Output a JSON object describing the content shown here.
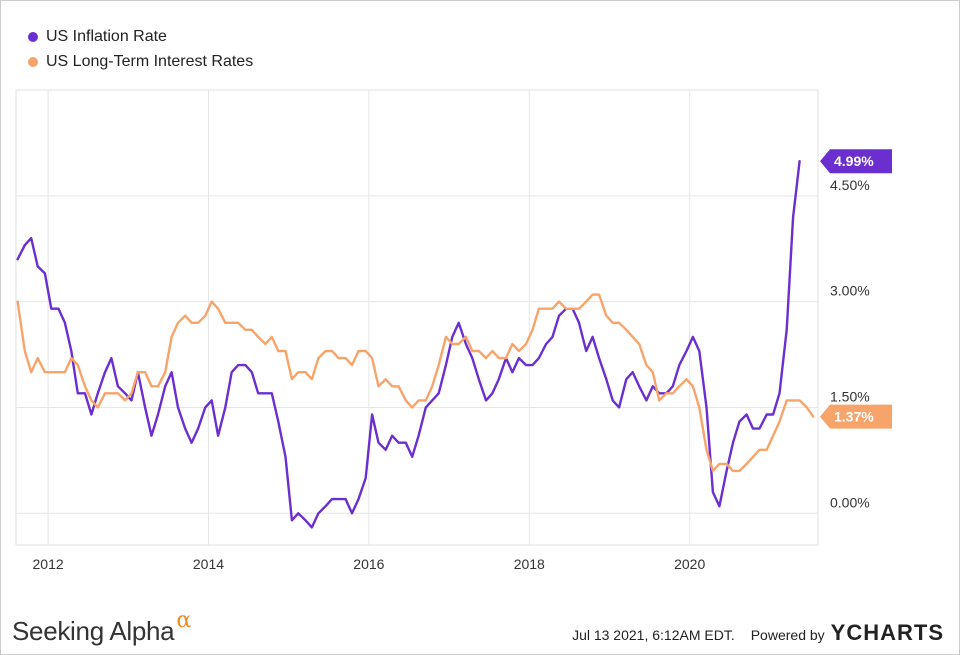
{
  "chart_data": {
    "type": "line",
    "x_ticks": [
      "2012",
      "2014",
      "2016",
      "2018",
      "2020"
    ],
    "x_range": [
      2011.6,
      2021.6
    ],
    "y_ticks": [
      "0.00%",
      "1.50%",
      "3.00%",
      "4.50%"
    ],
    "y_range": [
      -0.45,
      6.0
    ],
    "grid": true,
    "legend_position": "top-left",
    "series": [
      {
        "name": "US Inflation Rate",
        "color": "#6b2fcf",
        "end_label": "4.99%",
        "points": [
          [
            2011.62,
            3.6
          ],
          [
            2011.71,
            3.8
          ],
          [
            2011.79,
            3.9
          ],
          [
            2011.87,
            3.5
          ],
          [
            2011.96,
            3.4
          ],
          [
            2012.04,
            2.9
          ],
          [
            2012.13,
            2.9
          ],
          [
            2012.21,
            2.7
          ],
          [
            2012.29,
            2.3
          ],
          [
            2012.37,
            1.7
          ],
          [
            2012.46,
            1.7
          ],
          [
            2012.54,
            1.4
          ],
          [
            2012.62,
            1.7
          ],
          [
            2012.71,
            2.0
          ],
          [
            2012.79,
            2.2
          ],
          [
            2012.87,
            1.8
          ],
          [
            2012.96,
            1.7
          ],
          [
            2013.04,
            1.6
          ],
          [
            2013.12,
            2.0
          ],
          [
            2013.21,
            1.5
          ],
          [
            2013.29,
            1.1
          ],
          [
            2013.37,
            1.4
          ],
          [
            2013.46,
            1.8
          ],
          [
            2013.54,
            2.0
          ],
          [
            2013.62,
            1.5
          ],
          [
            2013.71,
            1.2
          ],
          [
            2013.79,
            1.0
          ],
          [
            2013.87,
            1.2
          ],
          [
            2013.96,
            1.5
          ],
          [
            2014.04,
            1.6
          ],
          [
            2014.12,
            1.1
          ],
          [
            2014.21,
            1.5
          ],
          [
            2014.29,
            2.0
          ],
          [
            2014.37,
            2.1
          ],
          [
            2014.46,
            2.1
          ],
          [
            2014.54,
            2.0
          ],
          [
            2014.62,
            1.7
          ],
          [
            2014.71,
            1.7
          ],
          [
            2014.79,
            1.7
          ],
          [
            2014.87,
            1.3
          ],
          [
            2014.96,
            0.8
          ],
          [
            2015.04,
            -0.1
          ],
          [
            2015.12,
            0.0
          ],
          [
            2015.21,
            -0.1
          ],
          [
            2015.29,
            -0.2
          ],
          [
            2015.37,
            0.0
          ],
          [
            2015.46,
            0.1
          ],
          [
            2015.54,
            0.2
          ],
          [
            2015.62,
            0.2
          ],
          [
            2015.71,
            0.2
          ],
          [
            2015.79,
            0.0
          ],
          [
            2015.87,
            0.2
          ],
          [
            2015.96,
            0.5
          ],
          [
            2016.04,
            1.4
          ],
          [
            2016.12,
            1.0
          ],
          [
            2016.21,
            0.9
          ],
          [
            2016.29,
            1.1
          ],
          [
            2016.37,
            1.0
          ],
          [
            2016.46,
            1.0
          ],
          [
            2016.54,
            0.8
          ],
          [
            2016.62,
            1.1
          ],
          [
            2016.71,
            1.5
          ],
          [
            2016.79,
            1.6
          ],
          [
            2016.87,
            1.7
          ],
          [
            2016.96,
            2.1
          ],
          [
            2017.04,
            2.5
          ],
          [
            2017.12,
            2.7
          ],
          [
            2017.21,
            2.4
          ],
          [
            2017.29,
            2.2
          ],
          [
            2017.37,
            1.9
          ],
          [
            2017.46,
            1.6
          ],
          [
            2017.54,
            1.7
          ],
          [
            2017.62,
            1.9
          ],
          [
            2017.71,
            2.2
          ],
          [
            2017.79,
            2.0
          ],
          [
            2017.87,
            2.2
          ],
          [
            2017.96,
            2.1
          ],
          [
            2018.04,
            2.1
          ],
          [
            2018.12,
            2.2
          ],
          [
            2018.21,
            2.4
          ],
          [
            2018.29,
            2.5
          ],
          [
            2018.37,
            2.8
          ],
          [
            2018.46,
            2.9
          ],
          [
            2018.54,
            2.9
          ],
          [
            2018.62,
            2.7
          ],
          [
            2018.71,
            2.3
          ],
          [
            2018.79,
            2.5
          ],
          [
            2018.87,
            2.2
          ],
          [
            2018.96,
            1.9
          ],
          [
            2019.04,
            1.6
          ],
          [
            2019.12,
            1.5
          ],
          [
            2019.21,
            1.9
          ],
          [
            2019.29,
            2.0
          ],
          [
            2019.37,
            1.8
          ],
          [
            2019.46,
            1.6
          ],
          [
            2019.54,
            1.8
          ],
          [
            2019.62,
            1.7
          ],
          [
            2019.71,
            1.7
          ],
          [
            2019.79,
            1.8
          ],
          [
            2019.87,
            2.1
          ],
          [
            2019.96,
            2.3
          ],
          [
            2020.04,
            2.5
          ],
          [
            2020.12,
            2.3
          ],
          [
            2020.21,
            1.5
          ],
          [
            2020.29,
            0.3
          ],
          [
            2020.37,
            0.1
          ],
          [
            2020.46,
            0.6
          ],
          [
            2020.54,
            1.0
          ],
          [
            2020.62,
            1.3
          ],
          [
            2020.71,
            1.4
          ],
          [
            2020.79,
            1.2
          ],
          [
            2020.87,
            1.2
          ],
          [
            2020.96,
            1.4
          ],
          [
            2021.04,
            1.4
          ],
          [
            2021.12,
            1.7
          ],
          [
            2021.21,
            2.6
          ],
          [
            2021.29,
            4.2
          ],
          [
            2021.37,
            4.99
          ]
        ]
      },
      {
        "name": "US Long-Term Interest Rates",
        "color": "#f7a46b",
        "end_label": "1.37%",
        "points": [
          [
            2011.62,
            3.0
          ],
          [
            2011.71,
            2.3
          ],
          [
            2011.79,
            2.0
          ],
          [
            2011.87,
            2.2
          ],
          [
            2011.96,
            2.0
          ],
          [
            2012.04,
            2.0
          ],
          [
            2012.13,
            2.0
          ],
          [
            2012.21,
            2.0
          ],
          [
            2012.29,
            2.2
          ],
          [
            2012.37,
            2.1
          ],
          [
            2012.46,
            1.8
          ],
          [
            2012.54,
            1.6
          ],
          [
            2012.62,
            1.5
          ],
          [
            2012.71,
            1.7
          ],
          [
            2012.79,
            1.7
          ],
          [
            2012.87,
            1.7
          ],
          [
            2012.96,
            1.6
          ],
          [
            2013.04,
            1.7
          ],
          [
            2013.12,
            2.0
          ],
          [
            2013.21,
            2.0
          ],
          [
            2013.29,
            1.8
          ],
          [
            2013.37,
            1.8
          ],
          [
            2013.46,
            2.0
          ],
          [
            2013.54,
            2.5
          ],
          [
            2013.62,
            2.7
          ],
          [
            2013.71,
            2.8
          ],
          [
            2013.79,
            2.7
          ],
          [
            2013.87,
            2.7
          ],
          [
            2013.96,
            2.8
          ],
          [
            2014.04,
            3.0
          ],
          [
            2014.12,
            2.9
          ],
          [
            2014.21,
            2.7
          ],
          [
            2014.29,
            2.7
          ],
          [
            2014.37,
            2.7
          ],
          [
            2014.46,
            2.6
          ],
          [
            2014.54,
            2.6
          ],
          [
            2014.62,
            2.5
          ],
          [
            2014.71,
            2.4
          ],
          [
            2014.79,
            2.5
          ],
          [
            2014.87,
            2.3
          ],
          [
            2014.96,
            2.3
          ],
          [
            2015.04,
            1.9
          ],
          [
            2015.12,
            2.0
          ],
          [
            2015.21,
            2.0
          ],
          [
            2015.29,
            1.9
          ],
          [
            2015.37,
            2.2
          ],
          [
            2015.46,
            2.3
          ],
          [
            2015.54,
            2.3
          ],
          [
            2015.62,
            2.2
          ],
          [
            2015.71,
            2.2
          ],
          [
            2015.79,
            2.1
          ],
          [
            2015.87,
            2.3
          ],
          [
            2015.96,
            2.3
          ],
          [
            2016.04,
            2.2
          ],
          [
            2016.12,
            1.8
          ],
          [
            2016.21,
            1.9
          ],
          [
            2016.29,
            1.8
          ],
          [
            2016.37,
            1.8
          ],
          [
            2016.46,
            1.6
          ],
          [
            2016.54,
            1.5
          ],
          [
            2016.62,
            1.6
          ],
          [
            2016.71,
            1.6
          ],
          [
            2016.79,
            1.8
          ],
          [
            2016.87,
            2.1
          ],
          [
            2016.96,
            2.5
          ],
          [
            2017.04,
            2.4
          ],
          [
            2017.12,
            2.4
          ],
          [
            2017.21,
            2.5
          ],
          [
            2017.29,
            2.3
          ],
          [
            2017.37,
            2.3
          ],
          [
            2017.46,
            2.2
          ],
          [
            2017.54,
            2.3
          ],
          [
            2017.62,
            2.2
          ],
          [
            2017.71,
            2.2
          ],
          [
            2017.79,
            2.4
          ],
          [
            2017.87,
            2.3
          ],
          [
            2017.96,
            2.4
          ],
          [
            2018.04,
            2.6
          ],
          [
            2018.12,
            2.9
          ],
          [
            2018.21,
            2.9
          ],
          [
            2018.29,
            2.9
          ],
          [
            2018.37,
            3.0
          ],
          [
            2018.46,
            2.9
          ],
          [
            2018.54,
            2.9
          ],
          [
            2018.62,
            2.9
          ],
          [
            2018.71,
            3.0
          ],
          [
            2018.79,
            3.1
          ],
          [
            2018.87,
            3.1
          ],
          [
            2018.96,
            2.8
          ],
          [
            2019.04,
            2.7
          ],
          [
            2019.12,
            2.7
          ],
          [
            2019.21,
            2.6
          ],
          [
            2019.29,
            2.5
          ],
          [
            2019.37,
            2.4
          ],
          [
            2019.46,
            2.1
          ],
          [
            2019.54,
            2.0
          ],
          [
            2019.62,
            1.6
          ],
          [
            2019.71,
            1.7
          ],
          [
            2019.79,
            1.7
          ],
          [
            2019.87,
            1.8
          ],
          [
            2019.96,
            1.9
          ],
          [
            2020.04,
            1.8
          ],
          [
            2020.12,
            1.5
          ],
          [
            2020.21,
            0.9
          ],
          [
            2020.29,
            0.6
          ],
          [
            2020.37,
            0.7
          ],
          [
            2020.46,
            0.7
          ],
          [
            2020.54,
            0.6
          ],
          [
            2020.62,
            0.6
          ],
          [
            2020.71,
            0.7
          ],
          [
            2020.79,
            0.8
          ],
          [
            2020.87,
            0.9
          ],
          [
            2020.96,
            0.9
          ],
          [
            2021.04,
            1.1
          ],
          [
            2021.12,
            1.3
          ],
          [
            2021.21,
            1.6
          ],
          [
            2021.29,
            1.6
          ],
          [
            2021.37,
            1.6
          ],
          [
            2021.46,
            1.5
          ],
          [
            2021.54,
            1.37
          ]
        ]
      }
    ]
  },
  "footer": {
    "brand": "Seeking Alpha",
    "brand_mark": "α",
    "timestamp": "Jul 13 2021, 6:12AM EDT.",
    "powered_by": "Powered by",
    "provider": "YCHARTS"
  }
}
